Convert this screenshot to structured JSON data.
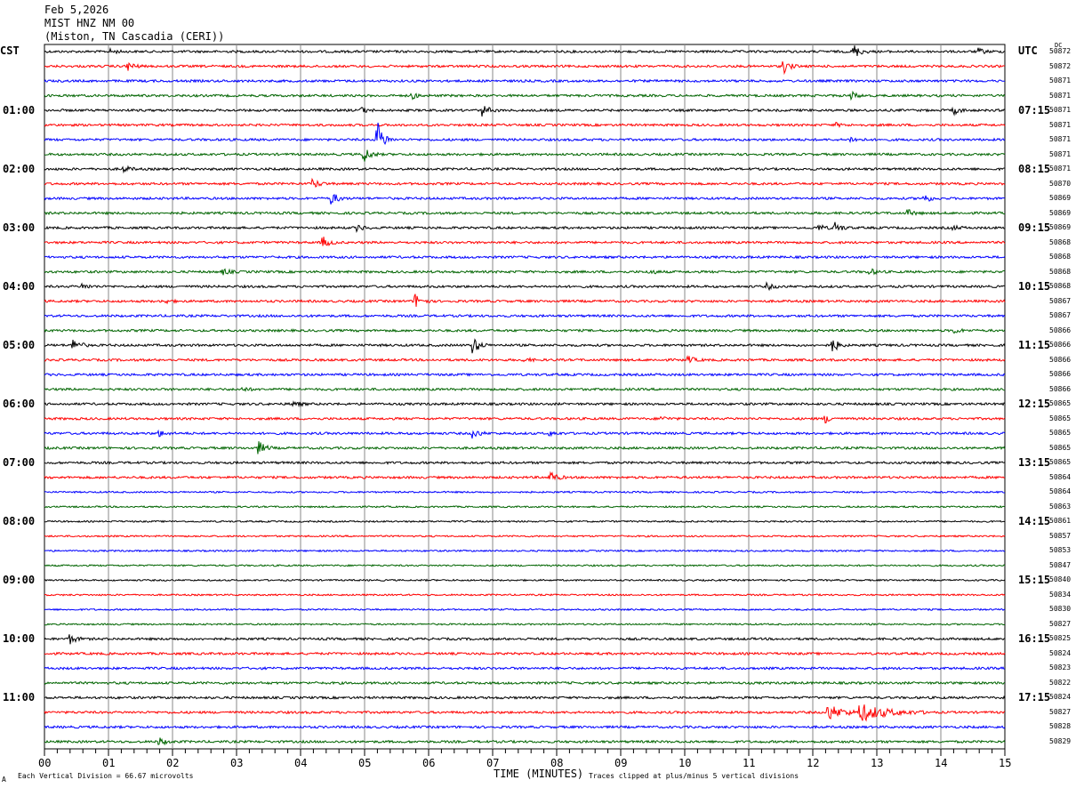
{
  "header": {
    "date": "Feb 5,2026",
    "station": "MIST HNZ NM 00",
    "location": "(Miston, TN Cascadia (CERI))"
  },
  "left_tz": "CST",
  "right_tz": "UTC",
  "dc_label": "DC",
  "footer": {
    "scale": "Each Vertical Division =   66.67 microvolts",
    "xlabel": "TIME (MINUTES)",
    "clip": "Traces clipped at plus/minus 5 vertical divisions",
    "corner": "A"
  },
  "colors": [
    "#000000",
    "#ff0000",
    "#0000ff",
    "#006400"
  ],
  "chart_data": {
    "type": "line",
    "title": "MIST HNZ NM 00 helicorder",
    "xlabel": "TIME (MINUTES)",
    "xlim": [
      0,
      15
    ],
    "x_ticks": [
      "00",
      "01",
      "02",
      "03",
      "04",
      "05",
      "06",
      "07",
      "08",
      "09",
      "10",
      "11",
      "12",
      "13",
      "14",
      "15"
    ],
    "left_labels": [
      {
        "trace": 4,
        "text": "01:00"
      },
      {
        "trace": 8,
        "text": "02:00"
      },
      {
        "trace": 12,
        "text": "03:00"
      },
      {
        "trace": 16,
        "text": "04:00"
      },
      {
        "trace": 20,
        "text": "05:00"
      },
      {
        "trace": 24,
        "text": "06:00"
      },
      {
        "trace": 28,
        "text": "07:00"
      },
      {
        "trace": 32,
        "text": "08:00"
      },
      {
        "trace": 36,
        "text": "09:00"
      },
      {
        "trace": 40,
        "text": "10:00"
      },
      {
        "trace": 44,
        "text": "11:00"
      }
    ],
    "right_labels": [
      {
        "trace": 4,
        "text": "07:15"
      },
      {
        "trace": 8,
        "text": "08:15"
      },
      {
        "trace": 12,
        "text": "09:15"
      },
      {
        "trace": 16,
        "text": "10:15"
      },
      {
        "trace": 20,
        "text": "11:15"
      },
      {
        "trace": 24,
        "text": "12:15"
      },
      {
        "trace": 28,
        "text": "13:15"
      },
      {
        "trace": 32,
        "text": "14:15"
      },
      {
        "trace": 36,
        "text": "15:15"
      },
      {
        "trace": 40,
        "text": "16:15"
      },
      {
        "trace": 44,
        "text": "17:15"
      }
    ],
    "dc_values": [
      "50872",
      "50872",
      "50871",
      "50871",
      "50871",
      "50871",
      "50871",
      "50871",
      "50871",
      "50870",
      "50869",
      "50869",
      "50869",
      "50868",
      "50868",
      "50868",
      "50868",
      "50867",
      "50867",
      "50866",
      "50866",
      "50866",
      "50866",
      "50866",
      "50865",
      "50865",
      "50865",
      "50865",
      "50865",
      "50864",
      "50864",
      "50863",
      "50861",
      "50857",
      "50853",
      "50847",
      "50840",
      "50834",
      "50830",
      "50827",
      "50825",
      "50824",
      "50823",
      "50822",
      "50824",
      "50827",
      "50828",
      "50829"
    ],
    "events": [
      {
        "trace": 0,
        "minute": 12.65,
        "amp": 7
      },
      {
        "trace": 0,
        "minute": 14.6,
        "amp": 3
      },
      {
        "trace": 0,
        "minute": 1.05,
        "amp": 2
      },
      {
        "trace": 1,
        "minute": 1.3,
        "amp": 5
      },
      {
        "trace": 1,
        "minute": 11.55,
        "amp": 7
      },
      {
        "trace": 3,
        "minute": 5.75,
        "amp": 3
      },
      {
        "trace": 3,
        "minute": 12.6,
        "amp": 4
      },
      {
        "trace": 4,
        "minute": 6.85,
        "amp": 6
      },
      {
        "trace": 4,
        "minute": 14.2,
        "amp": 4
      },
      {
        "trace": 4,
        "minute": 4.95,
        "amp": 3
      },
      {
        "trace": 5,
        "minute": 12.35,
        "amp": 2
      },
      {
        "trace": 6,
        "minute": 5.2,
        "amp": 20
      },
      {
        "trace": 6,
        "minute": 12.6,
        "amp": 3
      },
      {
        "trace": 7,
        "minute": 5.0,
        "amp": 8
      },
      {
        "trace": 8,
        "minute": 1.25,
        "amp": 3
      },
      {
        "trace": 9,
        "minute": 4.2,
        "amp": 5
      },
      {
        "trace": 10,
        "minute": 4.5,
        "amp": 6
      },
      {
        "trace": 10,
        "minute": 13.75,
        "amp": 4
      },
      {
        "trace": 11,
        "minute": 13.5,
        "amp": 3
      },
      {
        "trace": 12,
        "minute": 12.35,
        "amp": 6
      },
      {
        "trace": 12,
        "minute": 12.1,
        "amp": 3
      },
      {
        "trace": 12,
        "minute": 4.9,
        "amp": 3
      },
      {
        "trace": 12,
        "minute": 14.2,
        "amp": 2
      },
      {
        "trace": 13,
        "minute": 4.35,
        "amp": 6
      },
      {
        "trace": 15,
        "minute": 2.8,
        "amp": 3
      },
      {
        "trace": 15,
        "minute": 9.45,
        "amp": 3
      },
      {
        "trace": 15,
        "minute": 12.9,
        "amp": 3
      },
      {
        "trace": 16,
        "minute": 0.6,
        "amp": 3
      },
      {
        "trace": 16,
        "minute": 11.3,
        "amp": 3
      },
      {
        "trace": 17,
        "minute": 5.8,
        "amp": 8
      },
      {
        "trace": 17,
        "minute": 1.85,
        "amp": 3
      },
      {
        "trace": 19,
        "minute": 14.2,
        "amp": 3
      },
      {
        "trace": 20,
        "minute": 0.45,
        "amp": 8
      },
      {
        "trace": 20,
        "minute": 6.7,
        "amp": 9
      },
      {
        "trace": 20,
        "minute": 12.3,
        "amp": 8
      },
      {
        "trace": 21,
        "minute": 10.05,
        "amp": 4
      },
      {
        "trace": 21,
        "minute": 7.5,
        "amp": 2
      },
      {
        "trace": 23,
        "minute": 3.1,
        "amp": 2
      },
      {
        "trace": 24,
        "minute": 3.9,
        "amp": 3
      },
      {
        "trace": 25,
        "minute": 12.2,
        "amp": 4
      },
      {
        "trace": 25,
        "minute": 9.65,
        "amp": 2
      },
      {
        "trace": 26,
        "minute": 6.7,
        "amp": 5
      },
      {
        "trace": 26,
        "minute": 1.8,
        "amp": 3
      },
      {
        "trace": 26,
        "minute": 7.9,
        "amp": 2
      },
      {
        "trace": 27,
        "minute": 3.35,
        "amp": 7
      },
      {
        "trace": 29,
        "minute": 7.9,
        "amp": 7
      },
      {
        "trace": 40,
        "minute": 0.4,
        "amp": 5
      },
      {
        "trace": 45,
        "minute": 12.25,
        "amp": 8,
        "dur": 0.6
      },
      {
        "trace": 45,
        "minute": 12.75,
        "amp": 9,
        "dur": 1.1
      },
      {
        "trace": 47,
        "minute": 1.8,
        "amp": 4
      }
    ]
  }
}
